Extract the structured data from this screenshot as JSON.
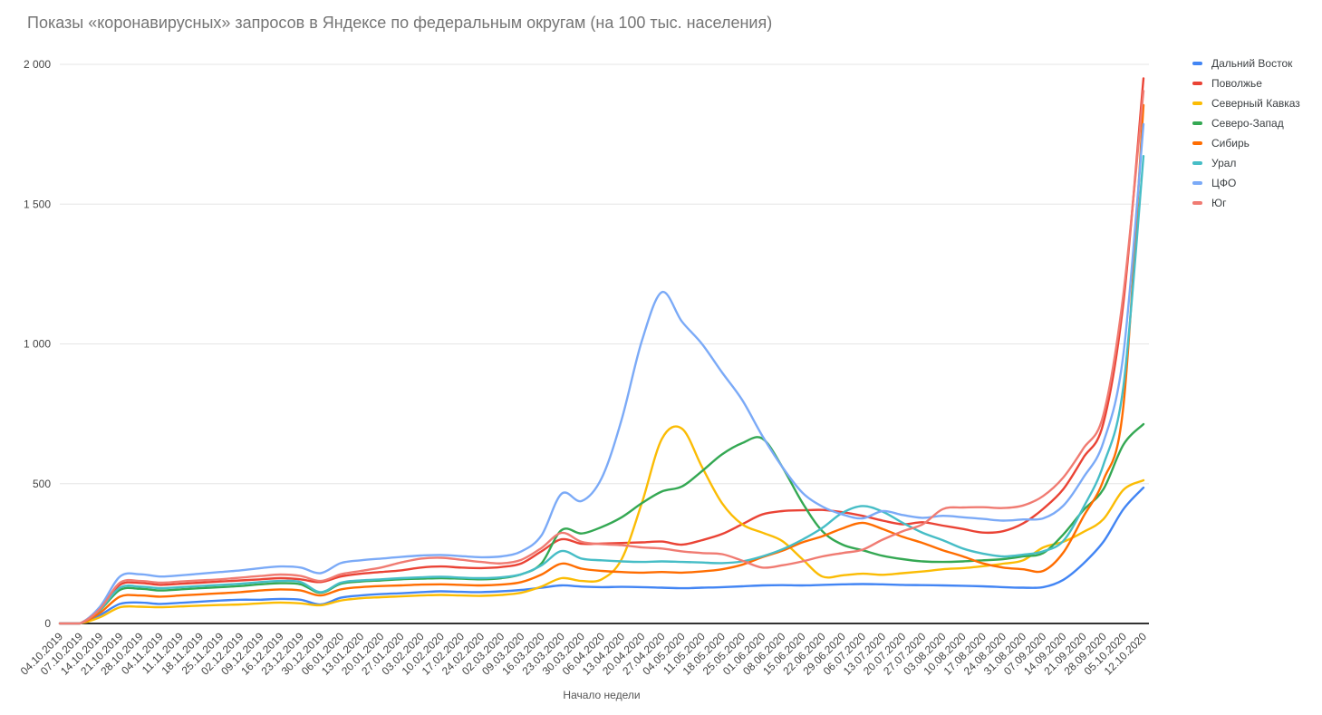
{
  "page": {
    "background": "#ffffff"
  },
  "chart_data": {
    "type": "line",
    "title": "Показы «коронавирусных» запросов в Яндексе по федеральным округам (на 100 тыс. населения)",
    "xlabel": "Начало недели",
    "ylabel": "",
    "ylim": [
      0,
      2000
    ],
    "yticks": [
      0,
      500,
      1000,
      1500,
      2000
    ],
    "ytick_labels": [
      "0",
      "500",
      "1 000",
      "1 500",
      "2 000"
    ],
    "grid": true,
    "smooth": true,
    "legend_position": "right",
    "axis_colors": {
      "gridline": "#e6e6e6",
      "baseline": "#333333",
      "tick_text": "#444444"
    },
    "categories": [
      "04.10.2019",
      "07.10.2019",
      "14.10.2019",
      "21.10.2019",
      "28.10.2019",
      "04.11.2019",
      "11.11.2019",
      "18.11.2019",
      "25.11.2019",
      "02.12.2019",
      "09.12.2019",
      "16.12.2019",
      "23.12.2019",
      "30.12.2019",
      "06.01.2020",
      "13.01.2020",
      "20.01.2020",
      "27.01.2020",
      "03.02.2020",
      "10.02.2020",
      "17.02.2020",
      "24.02.2020",
      "02.03.2020",
      "09.03.2020",
      "16.03.2020",
      "23.03.2020",
      "30.03.2020",
      "06.04.2020",
      "13.04.2020",
      "20.04.2020",
      "27.04.2020",
      "04.05.2020",
      "11.05.2020",
      "18.05.2020",
      "25.05.2020",
      "01.06.2020",
      "08.06.2020",
      "15.06.2020",
      "22.06.2020",
      "29.06.2020",
      "06.07.2020",
      "13.07.2020",
      "20.07.2020",
      "27.07.2020",
      "03.08.2020",
      "10.08.2020",
      "17.08.2020",
      "24.08.2020",
      "31.08.2020",
      "07.09.2020",
      "14.09.2020",
      "21.09.2020",
      "28.09.2020",
      "05.10.2020",
      "12.10.2020"
    ],
    "series": [
      {
        "name": "Дальний Восток",
        "color": "#4285F4",
        "values": [
          0,
          0,
          30,
          70,
          75,
          70,
          74,
          78,
          82,
          85,
          85,
          88,
          85,
          68,
          92,
          100,
          105,
          108,
          112,
          115,
          113,
          112,
          115,
          120,
          128,
          136,
          132,
          130,
          131,
          130,
          128,
          126,
          128,
          130,
          133,
          136,
          137,
          136,
          138,
          140,
          141,
          140,
          138,
          137,
          136,
          135,
          133,
          130,
          128,
          130,
          156,
          214,
          292,
          409,
          486
        ]
      },
      {
        "name": "Поволжье",
        "color": "#EA4335",
        "values": [
          0,
          0,
          55,
          138,
          145,
          138,
          142,
          146,
          150,
          154,
          158,
          162,
          158,
          148,
          168,
          178,
          184,
          190,
          200,
          204,
          200,
          198,
          202,
          215,
          258,
          301,
          285,
          286,
          288,
          290,
          293,
          282,
          298,
          320,
          355,
          390,
          402,
          405,
          406,
          398,
          385,
          368,
          355,
          362,
          350,
          338,
          325,
          330,
          358,
          410,
          480,
          593,
          716,
          1150,
          1950
        ]
      },
      {
        "name": "Северный Кавказ",
        "color": "#FBBC04",
        "values": [
          0,
          0,
          22,
          58,
          60,
          58,
          61,
          64,
          66,
          68,
          72,
          75,
          72,
          65,
          82,
          90,
          94,
          97,
          100,
          102,
          100,
          99,
          102,
          110,
          132,
          162,
          152,
          158,
          230,
          430,
          660,
          697,
          560,
          430,
          355,
          325,
          295,
          230,
          168,
          172,
          178,
          174,
          180,
          186,
          194,
          198,
          205,
          214,
          226,
          272,
          292,
          327,
          373,
          478,
          512
        ]
      },
      {
        "name": "Северо-Запад",
        "color": "#34A853",
        "values": [
          0,
          0,
          48,
          120,
          124,
          118,
          122,
          126,
          130,
          134,
          140,
          144,
          140,
          110,
          142,
          150,
          154,
          158,
          160,
          162,
          160,
          158,
          162,
          176,
          215,
          334,
          322,
          345,
          380,
          430,
          472,
          490,
          545,
          605,
          645,
          662,
          560,
          432,
          330,
          282,
          262,
          242,
          230,
          222,
          220,
          222,
          226,
          230,
          240,
          252,
          318,
          405,
          480,
          640,
          713
        ]
      },
      {
        "name": "Сибирь",
        "color": "#FF6D01",
        "values": [
          0,
          0,
          38,
          96,
          100,
          96,
          100,
          104,
          108,
          112,
          118,
          122,
          118,
          100,
          122,
          130,
          134,
          136,
          139,
          140,
          138,
          136,
          139,
          148,
          175,
          214,
          196,
          188,
          184,
          182,
          184,
          182,
          186,
          194,
          210,
          237,
          260,
          290,
          312,
          340,
          360,
          338,
          310,
          288,
          262,
          240,
          215,
          200,
          194,
          188,
          253,
          382,
          512,
          780,
          1854
        ]
      },
      {
        "name": "Урал",
        "color": "#46BDC6",
        "values": [
          0,
          0,
          50,
          128,
          132,
          126,
          130,
          134,
          138,
          142,
          148,
          152,
          148,
          112,
          146,
          154,
          158,
          162,
          165,
          167,
          164,
          162,
          165,
          176,
          208,
          259,
          232,
          226,
          222,
          220,
          222,
          220,
          218,
          216,
          222,
          240,
          265,
          300,
          342,
          396,
          420,
          400,
          360,
          324,
          298,
          268,
          250,
          240,
          246,
          258,
          295,
          415,
          567,
          850,
          1672
        ]
      },
      {
        "name": "ЦФО",
        "color": "#7BAAF7",
        "values": [
          0,
          0,
          60,
          168,
          176,
          168,
          172,
          178,
          184,
          190,
          198,
          204,
          200,
          180,
          216,
          226,
          232,
          238,
          243,
          245,
          241,
          237,
          240,
          258,
          315,
          464,
          438,
          520,
          730,
          1010,
          1185,
          1080,
          1000,
          898,
          800,
          672,
          560,
          468,
          418,
          390,
          376,
          402,
          388,
          378,
          385,
          380,
          374,
          368,
          372,
          376,
          421,
          522,
          648,
          965,
          1786
        ]
      },
      {
        "name": "Юг",
        "color": "#F07B72",
        "values": [
          0,
          0,
          52,
          146,
          152,
          146,
          150,
          154,
          158,
          164,
          170,
          175,
          170,
          152,
          176,
          188,
          200,
          218,
          232,
          235,
          228,
          220,
          215,
          228,
          270,
          324,
          292,
          284,
          280,
          272,
          268,
          258,
          252,
          248,
          225,
          200,
          208,
          222,
          240,
          252,
          264,
          300,
          330,
          355,
          409,
          415,
          416,
          413,
          422,
          456,
          522,
          626,
          746,
          1180,
          1905
        ]
      }
    ]
  }
}
